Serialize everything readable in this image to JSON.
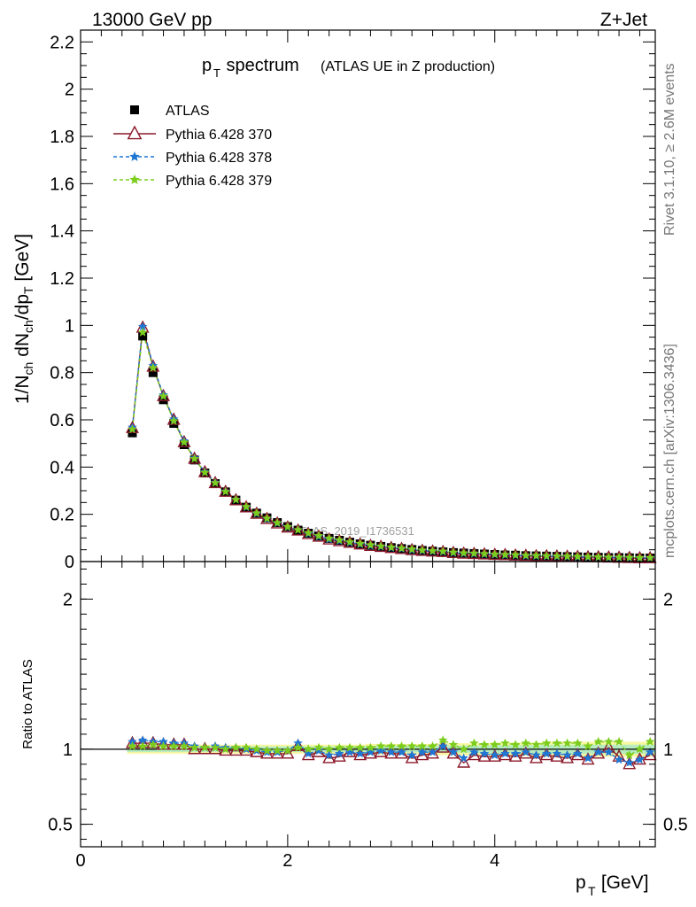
{
  "header": {
    "left": "13000 GeV pp",
    "right": "Z+Jet"
  },
  "side_labels": {
    "rivet": "Rivet 3.1.10, ≥ 2.6M events",
    "mcplots": "mcplots.cern.ch [arXiv:1306.3436]"
  },
  "watermark": "ATLAS_2019_I1736531",
  "chart_data": [
    {
      "type": "scatter",
      "title_main": "p",
      "title_sub": "T",
      "title_main2": " spectrum",
      "title_note": "(ATLAS UE in Z production)",
      "ylabel": "1/N_ch dN_ch/dp_T [GeV]",
      "ylim": [
        0,
        2.25
      ],
      "y_ticks": [
        "0",
        "0.2",
        "0.4",
        "0.6",
        "0.8",
        "1",
        "1.2",
        "1.4",
        "1.6",
        "1.8",
        "2",
        "2.2"
      ],
      "x": [
        0.5,
        0.6,
        0.7,
        0.8,
        0.9,
        1.0,
        1.1,
        1.2,
        1.3,
        1.4,
        1.5,
        1.6,
        1.7,
        1.8,
        1.9,
        2.0,
        2.1,
        2.2,
        2.3,
        2.4,
        2.5,
        2.6,
        2.7,
        2.8,
        2.9,
        3.0,
        3.1,
        3.2,
        3.3,
        3.4,
        3.5,
        3.6,
        3.7,
        3.8,
        3.9,
        4.0,
        4.1,
        4.2,
        4.3,
        4.4,
        4.5,
        4.6,
        4.7,
        4.8,
        4.9,
        5.0,
        5.1,
        5.2,
        5.3,
        5.4,
        5.5
      ],
      "series": [
        {
          "name": "ATLAS",
          "values": [
            0.545,
            0.955,
            0.8,
            0.685,
            0.585,
            0.495,
            0.43,
            0.375,
            0.33,
            0.295,
            0.26,
            0.23,
            0.205,
            0.185,
            0.165,
            0.148,
            0.133,
            0.12,
            0.108,
            0.098,
            0.09,
            0.082,
            0.075,
            0.069,
            0.064,
            0.059,
            0.055,
            0.051,
            0.047,
            0.044,
            0.041,
            0.038,
            0.036,
            0.034,
            0.032,
            0.03,
            0.028,
            0.027,
            0.025,
            0.024,
            0.023,
            0.022,
            0.021,
            0.02,
            0.019,
            0.018,
            0.017,
            0.017,
            0.016,
            0.015,
            0.015
          ]
        },
        {
          "name": "Pythia 6.428 370",
          "values": [
            0.565,
            0.99,
            0.825,
            0.7,
            0.6,
            0.505,
            0.435,
            0.378,
            0.332,
            0.295,
            0.259,
            0.229,
            0.202,
            0.18,
            0.161,
            0.144,
            0.131,
            0.116,
            0.105,
            0.093,
            0.086,
            0.079,
            0.072,
            0.066,
            0.062,
            0.057,
            0.053,
            0.048,
            0.045,
            0.042,
            0.04,
            0.036,
            0.033,
            0.032,
            0.03,
            0.028,
            0.027,
            0.025,
            0.024,
            0.022,
            0.022,
            0.021,
            0.02,
            0.019,
            0.018,
            0.018,
            0.017,
            0.016,
            0.015,
            0.014,
            0.014
          ]
        },
        {
          "name": "Pythia 6.428 378",
          "values": [
            0.568,
            0.995,
            0.83,
            0.705,
            0.603,
            0.51,
            0.438,
            0.38,
            0.335,
            0.297,
            0.262,
            0.23,
            0.203,
            0.181,
            0.162,
            0.146,
            0.134,
            0.118,
            0.106,
            0.094,
            0.087,
            0.08,
            0.073,
            0.067,
            0.063,
            0.058,
            0.054,
            0.049,
            0.046,
            0.043,
            0.041,
            0.037,
            0.034,
            0.033,
            0.031,
            0.029,
            0.027,
            0.026,
            0.024,
            0.023,
            0.022,
            0.021,
            0.02,
            0.019,
            0.018,
            0.018,
            0.016,
            0.016,
            0.015,
            0.014,
            0.014
          ]
        },
        {
          "name": "Pythia 6.428 379",
          "values": [
            0.56,
            0.97,
            0.82,
            0.7,
            0.595,
            0.505,
            0.435,
            0.377,
            0.333,
            0.296,
            0.262,
            0.232,
            0.205,
            0.183,
            0.164,
            0.147,
            0.134,
            0.121,
            0.109,
            0.098,
            0.091,
            0.083,
            0.076,
            0.07,
            0.065,
            0.06,
            0.056,
            0.052,
            0.048,
            0.045,
            0.043,
            0.039,
            0.036,
            0.035,
            0.033,
            0.031,
            0.029,
            0.028,
            0.026,
            0.025,
            0.024,
            0.023,
            0.022,
            0.021,
            0.02,
            0.019,
            0.018,
            0.018,
            0.017,
            0.016,
            0.016
          ]
        }
      ],
      "legend": "top-left"
    },
    {
      "type": "line",
      "ylabel": "Ratio to ATLAS",
      "ylim": [
        0.35,
        2.25
      ],
      "y_ticks": [
        "0.5",
        "1",
        "2"
      ],
      "xlabel_main": "p",
      "xlabel_sub": "T",
      "xlabel_unit": " [GeV]",
      "xlim": [
        0,
        5.55
      ],
      "x_ticks": [
        "0",
        "2",
        "4"
      ],
      "x": [
        0.5,
        0.6,
        0.7,
        0.8,
        0.9,
        1.0,
        1.1,
        1.2,
        1.3,
        1.4,
        1.5,
        1.6,
        1.7,
        1.8,
        1.9,
        2.0,
        2.1,
        2.2,
        2.3,
        2.4,
        2.5,
        2.6,
        2.7,
        2.8,
        2.9,
        3.0,
        3.1,
        3.2,
        3.3,
        3.4,
        3.5,
        3.6,
        3.7,
        3.8,
        3.9,
        4.0,
        4.1,
        4.2,
        4.3,
        4.4,
        4.5,
        4.6,
        4.7,
        4.8,
        4.9,
        5.0,
        5.1,
        5.2,
        5.3,
        5.4,
        5.5
      ],
      "band": {
        "upper": [
          1.03,
          1.03,
          1.03,
          1.03,
          1.03,
          1.03,
          1.03,
          1.03,
          1.03,
          1.03,
          1.03,
          1.03,
          1.03,
          1.03,
          1.03,
          1.03,
          1.03,
          1.03,
          1.03,
          1.03,
          1.03,
          1.03,
          1.03,
          1.035,
          1.035,
          1.035,
          1.035,
          1.035,
          1.035,
          1.035,
          1.04,
          1.04,
          1.04,
          1.04,
          1.04,
          1.045,
          1.045,
          1.045,
          1.045,
          1.045,
          1.05,
          1.05,
          1.05,
          1.05,
          1.05,
          1.05,
          1.05,
          1.05,
          1.05,
          1.05,
          1.05
        ],
        "lower": [
          0.97,
          0.97,
          0.97,
          0.97,
          0.97,
          0.97,
          0.97,
          0.97,
          0.97,
          0.97,
          0.97,
          0.97,
          0.97,
          0.97,
          0.97,
          0.97,
          0.97,
          0.97,
          0.97,
          0.97,
          0.97,
          0.97,
          0.97,
          0.965,
          0.965,
          0.965,
          0.965,
          0.965,
          0.965,
          0.965,
          0.96,
          0.96,
          0.96,
          0.96,
          0.96,
          0.955,
          0.955,
          0.955,
          0.955,
          0.955,
          0.95,
          0.95,
          0.95,
          0.95,
          0.95,
          0.95,
          0.95,
          0.95,
          0.95,
          0.95,
          0.95
        ]
      },
      "series": [
        {
          "name": "Pythia 6.428 370",
          "values": [
            1.04,
            1.04,
            1.04,
            1.03,
            1.03,
            1.03,
            1.0,
            1.0,
            1.0,
            0.99,
            0.99,
            0.99,
            0.98,
            0.97,
            0.97,
            0.97,
            1.02,
            0.96,
            0.98,
            0.94,
            0.95,
            0.98,
            0.96,
            0.97,
            0.98,
            0.97,
            0.97,
            0.94,
            0.96,
            0.97,
            1.01,
            0.97,
            0.91,
            0.96,
            0.95,
            0.95,
            0.96,
            0.95,
            0.97,
            0.94,
            0.96,
            0.95,
            0.94,
            0.96,
            0.93,
            0.97,
            1.01,
            0.95,
            0.9,
            0.93,
            0.96
          ]
        },
        {
          "name": "Pythia 6.428 378",
          "values": [
            1.05,
            1.06,
            1.05,
            1.05,
            1.04,
            1.04,
            1.02,
            1.01,
            1.02,
            1.01,
            1.01,
            1.0,
            0.99,
            0.98,
            0.98,
            0.99,
            1.04,
            0.97,
            0.99,
            0.96,
            0.97,
            0.98,
            0.97,
            0.98,
            0.99,
            0.98,
            0.98,
            0.96,
            0.98,
            0.98,
            1.02,
            0.98,
            0.94,
            0.98,
            0.97,
            0.96,
            0.97,
            0.97,
            0.98,
            0.96,
            0.97,
            0.97,
            0.96,
            0.97,
            0.94,
            0.98,
            0.98,
            0.93,
            0.91,
            0.93,
            0.98
          ]
        },
        {
          "name": "Pythia 6.428 379",
          "values": [
            1.02,
            1.02,
            1.03,
            1.02,
            1.02,
            1.02,
            1.01,
            1.01,
            1.01,
            1.0,
            1.01,
            1.01,
            1.0,
            0.99,
            0.99,
            0.99,
            1.01,
            1.0,
            1.01,
            1.0,
            1.01,
            1.01,
            1.01,
            1.01,
            1.02,
            1.02,
            1.02,
            1.02,
            1.02,
            1.02,
            1.06,
            1.03,
            1.0,
            1.04,
            1.03,
            1.03,
            1.04,
            1.03,
            1.04,
            1.03,
            1.04,
            1.04,
            1.04,
            1.04,
            1.02,
            1.05,
            1.05,
            1.05,
            0.96,
            1.0,
            1.05
          ]
        }
      ]
    }
  ],
  "colors": {
    "atlas": "#000000",
    "p370": "#8b1a2b",
    "p378": "#1f77d4",
    "p379": "#7ccd1e",
    "band_inner": "#b6ecc0",
    "band_outer": "#f7f7a0",
    "side_text": "#777777",
    "watermark": "#a0a0a0"
  }
}
